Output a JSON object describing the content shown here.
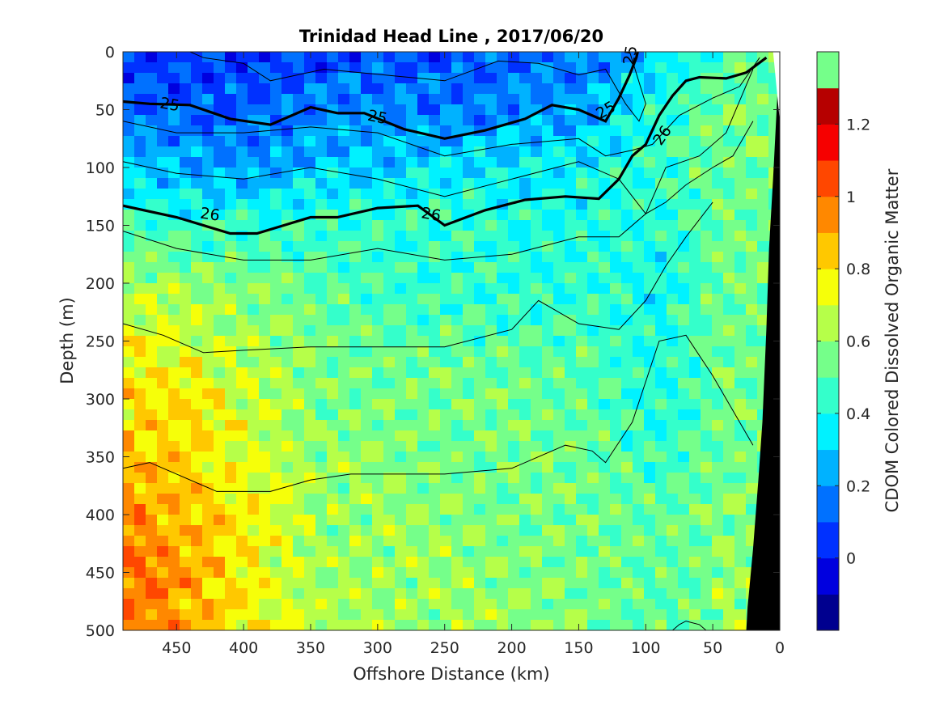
{
  "chart_data": {
    "type": "heatmap",
    "title": "Trinidad Head Line , 2017/06/20",
    "xlabel": "Offshore Distance (km)",
    "ylabel": "Depth (m)",
    "colorbar_label": "CDOM Colored Dissolved Organic Matter",
    "xlim": [
      490,
      0
    ],
    "ylim": [
      0,
      500
    ],
    "xticks": [
      450,
      400,
      350,
      300,
      250,
      200,
      150,
      100,
      50,
      0
    ],
    "yticks": [
      0,
      50,
      100,
      150,
      200,
      250,
      300,
      350,
      400,
      450,
      500
    ],
    "clim": [
      -0.2,
      1.4
    ],
    "cticks": [
      0,
      0.2,
      0.4,
      0.6,
      0.8,
      1,
      1.2
    ],
    "colormap": [
      "#00008f",
      "#0000df",
      "#0031ff",
      "#0071ff",
      "#00b2ff",
      "#00f2ff",
      "#34ffcb",
      "#75ff8a",
      "#b6ff49",
      "#f6ff09",
      "#ffc800",
      "#ff8800",
      "#ff4700",
      "#f60000",
      "#b60000",
      "#75ff8a"
    ],
    "field_rows_depth_m": [
      0,
      50,
      100,
      150,
      200,
      250,
      300,
      350,
      400,
      450,
      500
    ],
    "field_cols_km": [
      490,
      440,
      390,
      340,
      290,
      240,
      190,
      140,
      90,
      40
    ],
    "cdom_field": [
      [
        0.05,
        0.05,
        0.05,
        0.08,
        0.1,
        0.1,
        0.12,
        0.15,
        0.3,
        0.5
      ],
      [
        0.15,
        0.12,
        0.12,
        0.18,
        0.2,
        0.15,
        0.2,
        0.25,
        0.45,
        0.55
      ],
      [
        0.3,
        0.25,
        0.2,
        0.3,
        0.3,
        0.35,
        0.35,
        0.4,
        0.45,
        0.55
      ],
      [
        0.45,
        0.45,
        0.45,
        0.45,
        0.45,
        0.45,
        0.4,
        0.42,
        0.4,
        0.55
      ],
      [
        0.62,
        0.6,
        0.55,
        0.5,
        0.45,
        0.45,
        0.42,
        0.45,
        0.38,
        0.55
      ],
      [
        0.75,
        0.7,
        0.62,
        0.55,
        0.52,
        0.5,
        0.5,
        0.5,
        0.4,
        0.55
      ],
      [
        0.8,
        0.8,
        0.68,
        0.55,
        0.55,
        0.55,
        0.55,
        0.5,
        0.4,
        0.55
      ],
      [
        0.85,
        0.8,
        0.7,
        0.6,
        0.58,
        0.55,
        0.55,
        0.55,
        0.45,
        0.55
      ],
      [
        0.95,
        0.85,
        0.75,
        0.6,
        0.6,
        0.58,
        0.55,
        0.55,
        0.5,
        0.58
      ],
      [
        1.0,
        0.9,
        0.75,
        0.62,
        0.6,
        0.6,
        0.58,
        0.55,
        0.5,
        0.6
      ],
      [
        1.0,
        0.9,
        0.75,
        0.65,
        0.62,
        0.6,
        0.6,
        0.55,
        0.5,
        0.6
      ]
    ],
    "contour_labels": [
      "25",
      "25",
      "25",
      "25",
      "26",
      "26",
      "26"
    ],
    "sigma25_km": [
      490,
      470,
      440,
      410,
      380,
      350,
      330,
      310,
      280,
      250,
      220,
      190,
      170,
      150,
      130,
      120,
      112,
      107,
      106
    ],
    "sigma25_depth": [
      43,
      45,
      46,
      58,
      63,
      48,
      53,
      53,
      67,
      75,
      68,
      58,
      46,
      50,
      60,
      40,
      20,
      5,
      0
    ],
    "sigma26_km": [
      490,
      450,
      410,
      390,
      370,
      350,
      330,
      300,
      270,
      250,
      220,
      190,
      160,
      135,
      120,
      110,
      100,
      90,
      80,
      70,
      60,
      40,
      25,
      10
    ],
    "sigma26_depth": [
      133,
      143,
      157,
      157,
      150,
      143,
      143,
      135,
      133,
      150,
      137,
      128,
      125,
      127,
      110,
      90,
      80,
      55,
      38,
      25,
      22,
      23,
      18,
      5
    ],
    "thin_contours": [
      {
        "km": [
          440,
          430,
          400,
          380,
          340,
          250,
          210,
          180,
          150,
          130,
          115,
          105,
          100,
          112
        ],
        "depth": [
          0,
          5,
          10,
          25,
          15,
          25,
          8,
          10,
          20,
          15,
          45,
          60,
          45,
          0
        ]
      },
      {
        "km": [
          490,
          450,
          400,
          350,
          300,
          250,
          200,
          150,
          130,
          110,
          95,
          75,
          50,
          30,
          15
        ],
        "depth": [
          60,
          70,
          70,
          65,
          70,
          90,
          80,
          75,
          90,
          85,
          80,
          55,
          40,
          30,
          5
        ]
      },
      {
        "km": [
          490,
          450,
          400,
          350,
          300,
          250,
          200,
          150,
          120,
          100,
          85,
          60,
          40,
          20
        ],
        "depth": [
          95,
          105,
          110,
          100,
          110,
          125,
          110,
          95,
          110,
          140,
          100,
          90,
          70,
          15
        ]
      },
      {
        "km": [
          490,
          450,
          400,
          350,
          300,
          250,
          200,
          150,
          120,
          100,
          85,
          70,
          50,
          35,
          20
        ],
        "depth": [
          155,
          170,
          180,
          180,
          170,
          180,
          175,
          160,
          160,
          140,
          130,
          115,
          100,
          90,
          60
        ]
      },
      {
        "km": [
          490,
          460,
          430,
          400,
          350,
          300,
          250,
          200,
          180,
          150,
          120,
          100,
          85,
          70,
          50
        ],
        "depth": [
          235,
          245,
          260,
          258,
          255,
          255,
          255,
          240,
          215,
          235,
          240,
          215,
          185,
          160,
          130
        ]
      },
      {
        "km": [
          490,
          470,
          420,
          380,
          350,
          320,
          250,
          200,
          160,
          140,
          130,
          110,
          90,
          70,
          50,
          30,
          20
        ],
        "depth": [
          360,
          355,
          380,
          380,
          370,
          365,
          365,
          360,
          340,
          345,
          355,
          320,
          250,
          245,
          280,
          320,
          340
        ]
      },
      {
        "km": [
          80,
          75,
          70,
          60,
          55
        ],
        "depth": [
          500,
          495,
          492,
          495,
          500
        ]
      }
    ],
    "bottom_km": [
      25,
      24,
      20,
      16,
      13,
      10,
      8,
      5,
      1,
      0
    ],
    "bottom_depth": [
      500,
      480,
      430,
      370,
      320,
      240,
      170,
      110,
      20,
      0
    ]
  }
}
